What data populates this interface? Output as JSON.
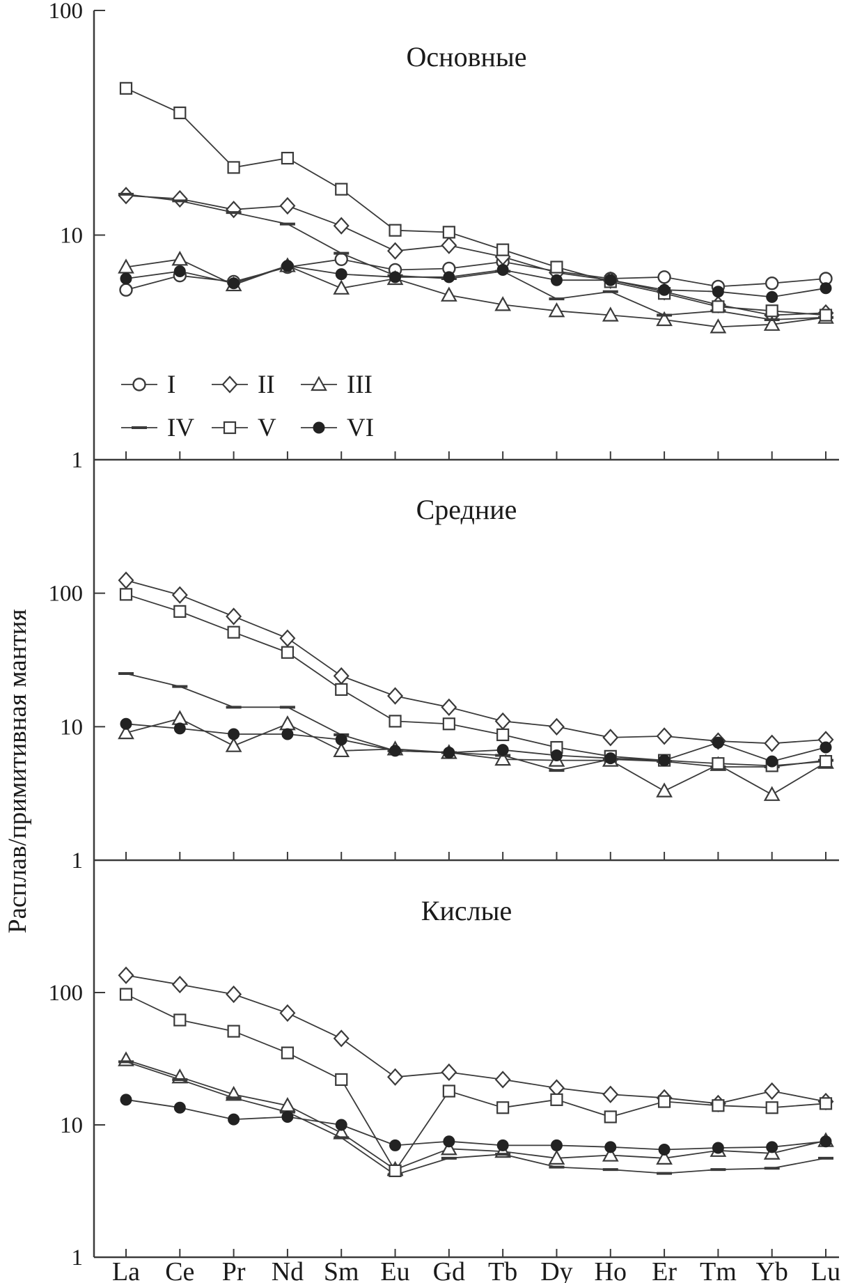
{
  "chart_meta": {
    "ylabel": "Расплав/примитивная мантия",
    "categories": [
      "La",
      "Ce",
      "Pr",
      "Nd",
      "Sm",
      "Eu",
      "Gd",
      "Tb",
      "Dy",
      "Ho",
      "Er",
      "Tm",
      "Yb",
      "Lu"
    ],
    "line_color": "#3a3a3a",
    "text_color": "#1a1a1a",
    "legend": [
      {
        "label": "I",
        "marker": "circle-open"
      },
      {
        "label": "II",
        "marker": "diamond-open"
      },
      {
        "label": "III",
        "marker": "triangle-open"
      },
      {
        "label": "IV",
        "marker": "dash"
      },
      {
        "label": "V",
        "marker": "square-open"
      },
      {
        "label": "VI",
        "marker": "circle-filled"
      }
    ],
    "legend_position": "inside-top-panel-lower-left"
  },
  "chart_data": [
    {
      "type": "line",
      "title": "Основные",
      "y_scale": "log",
      "ylim": [
        1,
        100
      ],
      "grid": false,
      "yticks": [
        {
          "value": 100,
          "label": "100"
        },
        {
          "value": 10,
          "label": "10"
        },
        {
          "value": 1,
          "label": "1"
        }
      ],
      "series": [
        {
          "name": "I",
          "marker": "circle-open",
          "values": [
            5.7,
            6.6,
            6.2,
            7.2,
            7.8,
            7.0,
            7.1,
            7.6,
            6.9,
            6.4,
            6.5,
            5.9,
            6.1,
            6.4
          ]
        },
        {
          "name": "II",
          "marker": "diamond-open",
          "values": [
            15.0,
            14.5,
            13.0,
            13.5,
            11.0,
            8.5,
            9.0,
            8.0,
            6.8,
            6.3,
            5.6,
            4.9,
            4.4,
            4.5
          ]
        },
        {
          "name": "III",
          "marker": "triangle-open",
          "values": [
            7.2,
            7.8,
            6.0,
            7.3,
            5.8,
            6.4,
            5.4,
            4.9,
            4.6,
            4.4,
            4.2,
            3.9,
            4.0,
            4.3
          ]
        },
        {
          "name": "IV",
          "marker": "dash",
          "values": [
            15.2,
            14.2,
            12.6,
            11.2,
            8.3,
            6.6,
            6.4,
            6.9,
            5.2,
            5.6,
            4.4,
            4.6,
            4.2,
            4.3
          ]
        },
        {
          "name": "V",
          "marker": "square-open",
          "values": [
            45.0,
            35.0,
            20.0,
            22.0,
            16.0,
            10.5,
            10.3,
            8.6,
            7.2,
            6.2,
            5.5,
            4.8,
            4.6,
            4.4
          ]
        },
        {
          "name": "VI",
          "marker": "circle-filled",
          "values": [
            6.4,
            6.9,
            6.1,
            7.3,
            6.7,
            6.5,
            6.5,
            7.0,
            6.3,
            6.3,
            5.7,
            5.6,
            5.3,
            5.8
          ]
        }
      ]
    },
    {
      "type": "line",
      "title": "Средние",
      "y_scale": "log",
      "ylim": [
        1,
        1000
      ],
      "grid": false,
      "yticks": [
        {
          "value": 100,
          "label": "100"
        },
        {
          "value": 10,
          "label": "10"
        },
        {
          "value": 1,
          "label": "1"
        }
      ],
      "series": [
        {
          "name": "II",
          "marker": "diamond-open",
          "values": [
            125,
            97,
            67,
            46,
            24,
            17,
            14,
            11,
            10,
            8.3,
            8.5,
            7.8,
            7.5,
            8.0
          ]
        },
        {
          "name": "III",
          "marker": "triangle-open",
          "values": [
            9.0,
            11.5,
            7.2,
            10.5,
            6.6,
            6.8,
            6.4,
            5.7,
            5.6,
            5.6,
            3.3,
            5.2,
            3.1,
            5.4
          ]
        },
        {
          "name": "IV",
          "marker": "dash",
          "values": [
            25,
            20,
            14,
            14,
            8.7,
            6.6,
            6.4,
            6.1,
            4.7,
            5.7,
            5.5,
            5.0,
            5.0,
            5.6
          ]
        },
        {
          "name": "V",
          "marker": "square-open",
          "values": [
            98,
            73,
            51,
            36,
            19,
            11,
            10.5,
            8.7,
            7.0,
            6.0,
            5.6,
            5.3,
            5.1,
            5.5
          ]
        },
        {
          "name": "VI",
          "marker": "circle-filled",
          "values": [
            10.5,
            9.7,
            8.8,
            8.8,
            8.0,
            6.6,
            6.4,
            6.7,
            6.1,
            5.8,
            5.6,
            7.6,
            5.5,
            7.0
          ]
        }
      ]
    },
    {
      "type": "line",
      "title": "Кислые",
      "y_scale": "log",
      "ylim": [
        1,
        1000
      ],
      "grid": false,
      "yticks": [
        {
          "value": 100,
          "label": "100"
        },
        {
          "value": 10,
          "label": "10"
        },
        {
          "value": 1,
          "label": "1"
        }
      ],
      "series": [
        {
          "name": "II",
          "marker": "diamond-open",
          "values": [
            135,
            115,
            97,
            70,
            45,
            23,
            25,
            22,
            19,
            17,
            16,
            14.5,
            18,
            15
          ]
        },
        {
          "name": "III",
          "marker": "triangle-open",
          "values": [
            31,
            23,
            17,
            14,
            8.7,
            4.6,
            6.6,
            6.3,
            5.6,
            5.9,
            5.6,
            6.4,
            6.1,
            7.6
          ]
        },
        {
          "name": "IV",
          "marker": "dash",
          "values": [
            30,
            22,
            16,
            12.5,
            8.0,
            4.2,
            5.6,
            6.0,
            4.8,
            4.6,
            4.3,
            4.6,
            4.7,
            5.6
          ]
        },
        {
          "name": "V",
          "marker": "square-open",
          "values": [
            97,
            62,
            51,
            35,
            22,
            4.5,
            18,
            13.5,
            15.5,
            11.5,
            15,
            14,
            13.5,
            14.5
          ]
        },
        {
          "name": "VI",
          "marker": "circle-filled",
          "values": [
            15.5,
            13.5,
            11,
            11.5,
            10,
            7.0,
            7.5,
            7.0,
            7.0,
            6.8,
            6.5,
            6.7,
            6.8,
            7.5
          ]
        }
      ]
    }
  ]
}
